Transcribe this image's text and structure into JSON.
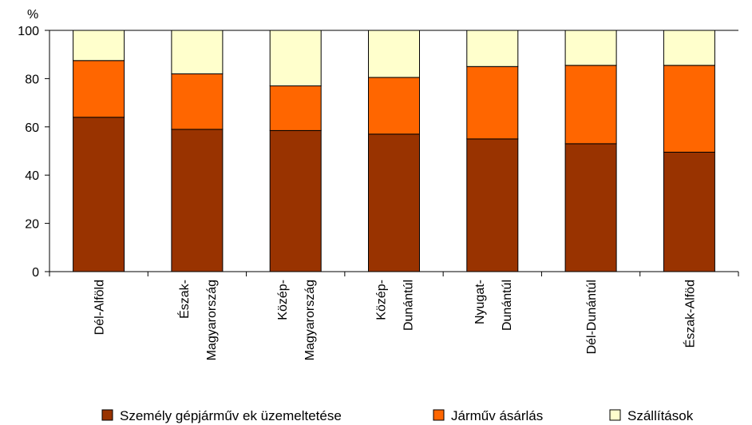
{
  "chart_data": {
    "type": "bar",
    "stacked": true,
    "ylabel": "%",
    "ylim": [
      0,
      100
    ],
    "yticks": [
      0,
      20,
      40,
      60,
      80,
      100
    ],
    "grid": false,
    "legend_position": "bottom",
    "categories": [
      [
        "Dél-Alföld"
      ],
      [
        "Észak-",
        "Magyarország"
      ],
      [
        "Közép-",
        "Magyarország"
      ],
      [
        "Közép-",
        "Dunántúl"
      ],
      [
        "Nyugat-",
        "Dunántúl"
      ],
      [
        "Dél-Dunántúl"
      ],
      [
        "Észak-Alföd"
      ]
    ],
    "series": [
      {
        "name": "Személy gépjárműv ek üzemeltetése",
        "color": "#993300",
        "values": [
          64,
          59,
          58.5,
          57,
          55,
          53,
          49.5
        ]
      },
      {
        "name": "Járműv ásárlás",
        "color": "#ff6600",
        "values": [
          23.5,
          23,
          18.5,
          23.5,
          30,
          32.5,
          36
        ]
      },
      {
        "name": "Szállítások",
        "color": "#ffffcc",
        "values": [
          12.5,
          18,
          23,
          19.5,
          15,
          14.5,
          14.5
        ]
      }
    ]
  }
}
